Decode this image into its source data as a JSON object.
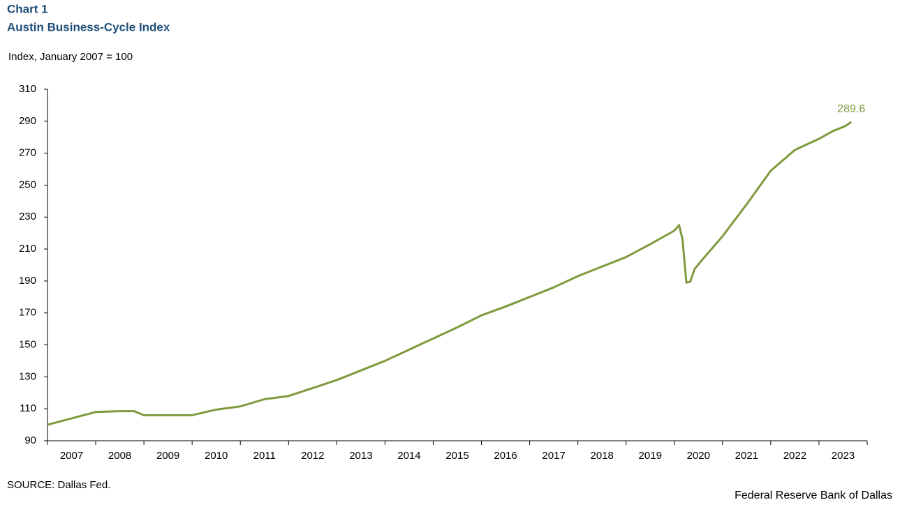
{
  "chart_data": {
    "type": "line",
    "title": "Chart 1",
    "subtitle": "Austin Business-Cycle Index",
    "y_axis_label": "Index, January 2007 = 100",
    "source": "SOURCE: Dallas Fed.",
    "credit": "Federal Reserve Bank of Dallas",
    "x": [
      2007.0,
      2007.5,
      2008.0,
      2008.5,
      2008.8,
      2009.0,
      2009.3,
      2010.0,
      2010.5,
      2011.0,
      2011.5,
      2012.0,
      2012.5,
      2013.0,
      2013.5,
      2014.0,
      2014.5,
      2015.0,
      2015.5,
      2016.0,
      2016.5,
      2017.0,
      2017.5,
      2018.0,
      2018.5,
      2019.0,
      2019.5,
      2020.0,
      2020.1,
      2020.17,
      2020.25,
      2020.33,
      2020.42,
      2020.6,
      2020.8,
      2021.0,
      2021.5,
      2022.0,
      2022.5,
      2023.0,
      2023.3,
      2023.55,
      2023.67
    ],
    "series": [
      {
        "name": "Austin Business-Cycle Index",
        "color": "#7f9a3d",
        "values": [
          100,
          104,
          108,
          108.5,
          108.5,
          106,
          106,
          106,
          109.5,
          111.5,
          116,
          118,
          123,
          128,
          134,
          140,
          147,
          154,
          161,
          168.5,
          174,
          180,
          186,
          193,
          199,
          205,
          213,
          221.5,
          225,
          216,
          189,
          189.5,
          197.5,
          204,
          211,
          218,
          238,
          259,
          272,
          279,
          284,
          287,
          289.6
        ],
        "value_labels": [
          null,
          null,
          null,
          null,
          null,
          null,
          null,
          null,
          null,
          null,
          null,
          null,
          null,
          null,
          null,
          null,
          null,
          null,
          null,
          null,
          null,
          null,
          null,
          null,
          null,
          null,
          null,
          null,
          null,
          null,
          null,
          null,
          null,
          null,
          null,
          null,
          null,
          null,
          null,
          null,
          null,
          null,
          "289.6"
        ]
      }
    ],
    "xlim": [
      2007,
      2024
    ],
    "xticks": [
      2007,
      2008,
      2009,
      2010,
      2011,
      2012,
      2013,
      2014,
      2015,
      2016,
      2017,
      2018,
      2019,
      2020,
      2021,
      2022,
      2023,
      2024
    ],
    "year_labels": [
      "2007",
      "2008",
      "2009",
      "2010",
      "2011",
      "2012",
      "2013",
      "2014",
      "2015",
      "2016",
      "2017",
      "2018",
      "2019",
      "2020",
      "2021",
      "2022",
      "2023"
    ],
    "ylim": [
      90,
      310
    ],
    "yticks": [
      90,
      110,
      130,
      150,
      170,
      190,
      210,
      230,
      250,
      270,
      290,
      310
    ],
    "grid": false
  }
}
